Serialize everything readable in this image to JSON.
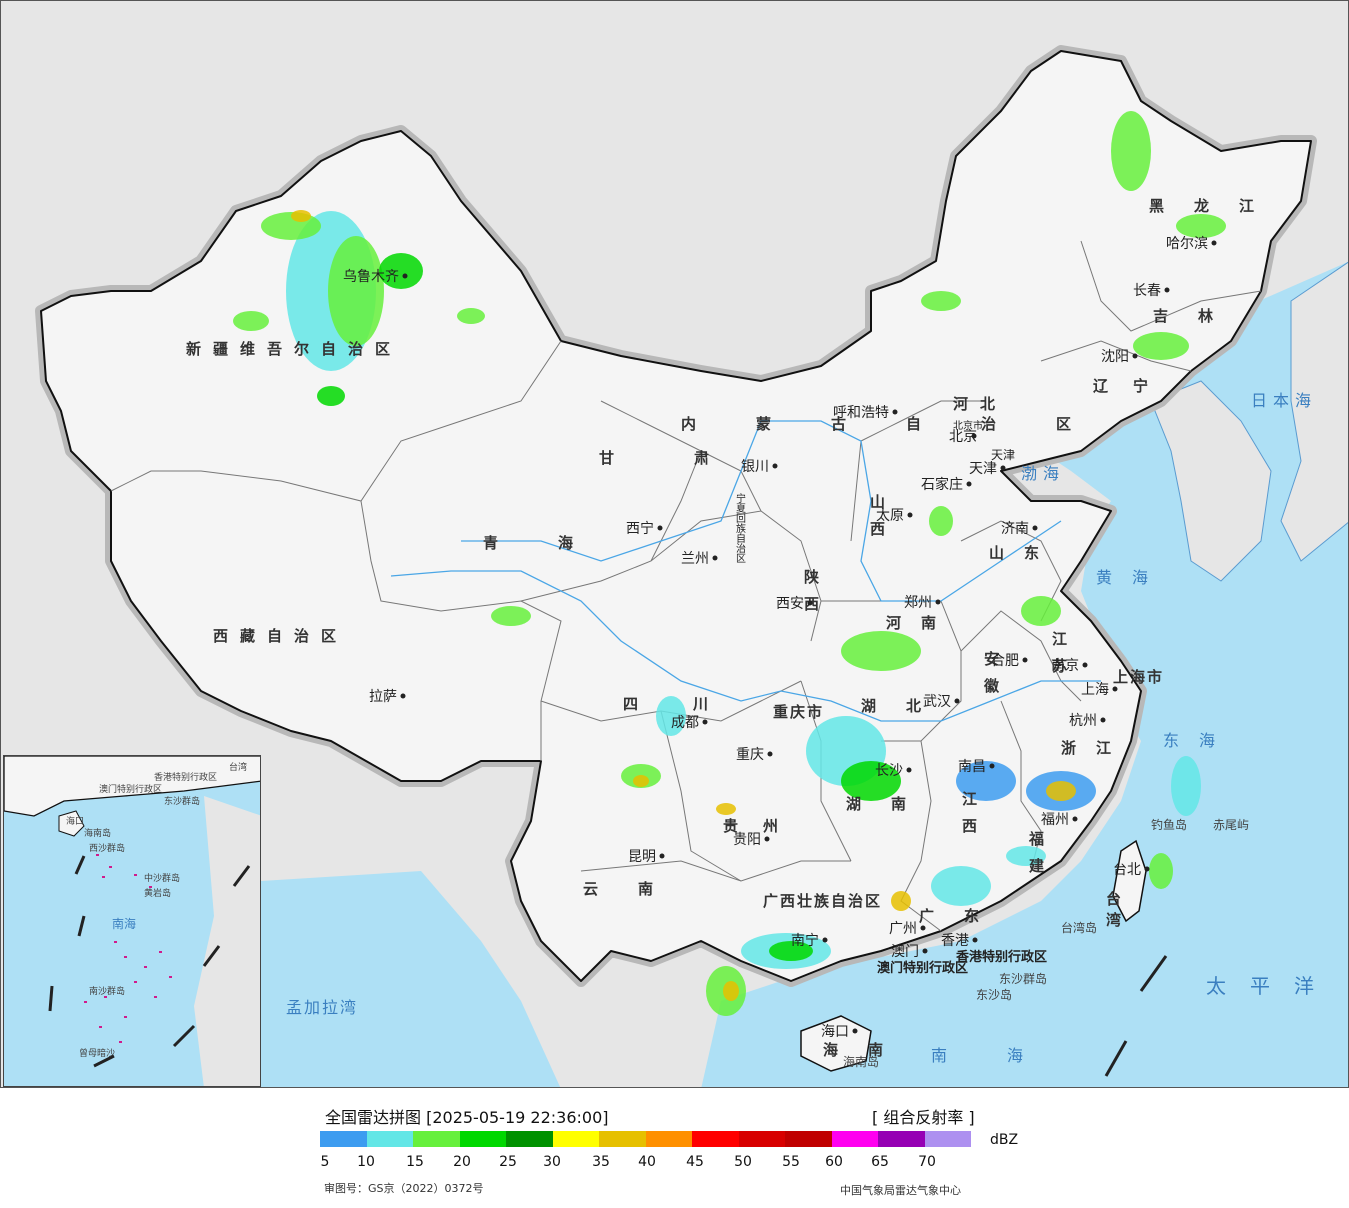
{
  "map": {
    "provinces": [
      {
        "id": "xinjiang",
        "name": "新疆维吾尔自治区"
      },
      {
        "id": "xizang",
        "name": "西藏自治区"
      },
      {
        "id": "qinghai",
        "name": "青海"
      },
      {
        "id": "gansu",
        "name": "甘肃"
      },
      {
        "id": "neimenggu",
        "name": "内蒙古自治区"
      },
      {
        "id": "heilongjiang",
        "name": "黑龙江"
      },
      {
        "id": "jilin",
        "name": "吉林"
      },
      {
        "id": "liaoning",
        "name": "辽宁"
      },
      {
        "id": "hebei",
        "name": "河北"
      },
      {
        "id": "shanxi",
        "name": "山西"
      },
      {
        "id": "shaanxi",
        "name": "陕西"
      },
      {
        "id": "sichuan",
        "name": "四川"
      },
      {
        "id": "yunnan",
        "name": "云南"
      },
      {
        "id": "guizhou",
        "name": "贵州"
      },
      {
        "id": "hubei",
        "name": "湖北"
      },
      {
        "id": "hunan",
        "name": "湖南"
      },
      {
        "id": "henan",
        "name": "河南"
      },
      {
        "id": "shandong",
        "name": "山东"
      },
      {
        "id": "jiangsu",
        "name": "江苏"
      },
      {
        "id": "anhui",
        "name": "安徽"
      },
      {
        "id": "zhejiang",
        "name": "浙江"
      },
      {
        "id": "jiangxi",
        "name": "江西"
      },
      {
        "id": "fujian",
        "name": "福建"
      },
      {
        "id": "guangdong",
        "name": "广东"
      },
      {
        "id": "guangxi",
        "name": "广西壮族自治区"
      },
      {
        "id": "hainan",
        "name": "海南"
      },
      {
        "id": "taiwan",
        "name": "台湾"
      },
      {
        "id": "ningxia",
        "name": "宁夏回族自治区"
      },
      {
        "id": "chongqing",
        "name": "重庆市"
      },
      {
        "id": "shanghai",
        "name": "上海市"
      },
      {
        "id": "tianjin",
        "name": "天津"
      },
      {
        "id": "beijing",
        "name": "北京市"
      },
      {
        "id": "hongkong",
        "name": "香港特别行政区"
      },
      {
        "id": "macau",
        "name": "澳门特别行政区"
      }
    ],
    "cities": [
      {
        "name": "乌鲁木齐"
      },
      {
        "name": "拉萨"
      },
      {
        "name": "西宁"
      },
      {
        "name": "兰州"
      },
      {
        "name": "银川"
      },
      {
        "name": "呼和浩特"
      },
      {
        "name": "北京"
      },
      {
        "name": "天津"
      },
      {
        "name": "石家庄"
      },
      {
        "name": "太原"
      },
      {
        "name": "济南"
      },
      {
        "name": "郑州"
      },
      {
        "name": "西安"
      },
      {
        "name": "成都"
      },
      {
        "name": "重庆"
      },
      {
        "name": "贵阳"
      },
      {
        "name": "昆明"
      },
      {
        "name": "南宁"
      },
      {
        "name": "广州"
      },
      {
        "name": "香港"
      },
      {
        "name": "澳门"
      },
      {
        "name": "海口"
      },
      {
        "name": "长沙"
      },
      {
        "name": "武汉"
      },
      {
        "name": "南昌"
      },
      {
        "name": "福州"
      },
      {
        "name": "台北"
      },
      {
        "name": "杭州"
      },
      {
        "name": "上海"
      },
      {
        "name": "南京"
      },
      {
        "name": "合肥"
      },
      {
        "name": "沈阳"
      },
      {
        "name": "长春"
      },
      {
        "name": "哈尔滨"
      }
    ],
    "seas": [
      {
        "name": "日本海"
      },
      {
        "name": "渤海"
      },
      {
        "name": "黄海"
      },
      {
        "name": "东海"
      },
      {
        "name": "南海"
      },
      {
        "name": "太平洋"
      },
      {
        "name": "孟加拉湾"
      }
    ],
    "islands": [
      {
        "name": "钓鱼岛"
      },
      {
        "name": "赤尾屿"
      },
      {
        "name": "东沙群岛"
      },
      {
        "name": "东沙岛"
      },
      {
        "name": "台湾岛"
      },
      {
        "name": "海南岛"
      }
    ],
    "inset": {
      "labels": [
        "海口",
        "海南岛",
        "香港特别行政区",
        "澳门特别行政区",
        "东沙群岛",
        "西沙群岛",
        "中沙群岛",
        "黄岩岛",
        "南沙群岛",
        "曾母暗沙",
        "南海",
        "台湾"
      ]
    }
  },
  "legend": {
    "title": "全国雷达拼图 [2025-05-19 22:36:00]",
    "product": "[ 组合反射率 ]",
    "unit": "dBZ",
    "colors": [
      "#3d9cf0",
      "#63e6e6",
      "#66f03c",
      "#00d800",
      "#009100",
      "#ffff00",
      "#e6c000",
      "#ff9000",
      "#ff0000",
      "#d80000",
      "#c00000",
      "#ff00f0",
      "#9600b4",
      "#ad90f0"
    ],
    "ticks": [
      "5",
      "10",
      "15",
      "20",
      "25",
      "30",
      "35",
      "40",
      "45",
      "50",
      "55",
      "60",
      "65",
      "70"
    ],
    "review_number": "审图号：GS京（2022）0372号",
    "credit": "中国气象局雷达气象中心"
  }
}
